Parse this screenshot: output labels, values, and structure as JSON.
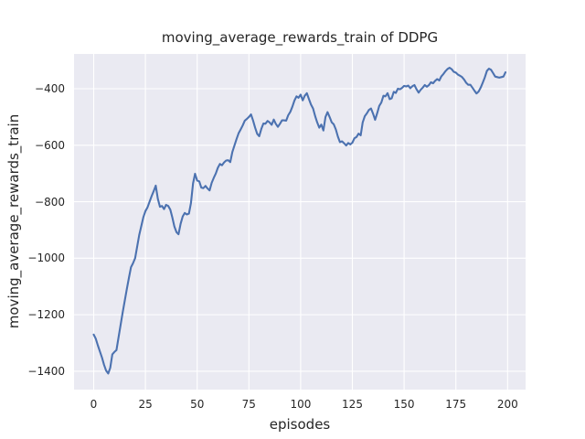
{
  "chart_data": {
    "type": "line",
    "title": "moving_average_rewards_train of DDPG",
    "xlabel": "episodes",
    "ylabel": "moving_average_rewards_train",
    "grid": true,
    "legend": false,
    "style": "seaborn-darkgrid",
    "xlim": [
      -9.5,
      208.7
    ],
    "ylim": [
      -1465,
      -277
    ],
    "xticks": [
      0,
      25,
      50,
      75,
      100,
      125,
      150,
      175,
      200
    ],
    "xtick_labels": [
      "0",
      "25",
      "50",
      "75",
      "100",
      "125",
      "150",
      "175",
      "200"
    ],
    "yticks": [
      -400,
      -600,
      -800,
      -1000,
      -1200,
      -1400
    ],
    "ytick_labels": [
      "−400",
      "−600",
      "−800",
      "−1000",
      "−1200",
      "−1400"
    ],
    "colors": {
      "line": "#4c72b0",
      "axes_background": "#eaeaf2",
      "gridline": "#ffffff",
      "text": "#262626",
      "figure_background": "#ffffff"
    },
    "series": [
      {
        "name": "moving_average_rewards_train",
        "x_start": 0,
        "x_step": 1,
        "values": [
          -1270,
          -1285,
          -1308,
          -1330,
          -1352,
          -1377,
          -1398,
          -1408,
          -1388,
          -1340,
          -1332,
          -1325,
          -1280,
          -1237,
          -1192,
          -1150,
          -1110,
          -1070,
          -1032,
          -1018,
          -1000,
          -958,
          -918,
          -886,
          -855,
          -833,
          -820,
          -800,
          -780,
          -762,
          -743,
          -790,
          -818,
          -815,
          -826,
          -811,
          -815,
          -828,
          -855,
          -888,
          -908,
          -915,
          -878,
          -852,
          -840,
          -845,
          -842,
          -805,
          -735,
          -701,
          -725,
          -728,
          -750,
          -752,
          -744,
          -753,
          -760,
          -733,
          -716,
          -700,
          -680,
          -666,
          -671,
          -661,
          -654,
          -653,
          -660,
          -624,
          -601,
          -579,
          -558,
          -544,
          -530,
          -513,
          -507,
          -500,
          -491,
          -512,
          -538,
          -560,
          -568,
          -542,
          -523,
          -524,
          -514,
          -519,
          -528,
          -509,
          -524,
          -535,
          -524,
          -512,
          -512,
          -513,
          -494,
          -482,
          -464,
          -442,
          -427,
          -432,
          -421,
          -441,
          -425,
          -416,
          -437,
          -456,
          -470,
          -497,
          -519,
          -538,
          -527,
          -548,
          -500,
          -483,
          -500,
          -519,
          -526,
          -544,
          -570,
          -589,
          -586,
          -593,
          -601,
          -592,
          -597,
          -591,
          -575,
          -571,
          -559,
          -565,
          -519,
          -497,
          -487,
          -475,
          -470,
          -488,
          -510,
          -486,
          -461,
          -449,
          -425,
          -427,
          -416,
          -437,
          -434,
          -411,
          -415,
          -400,
          -402,
          -397,
          -390,
          -392,
          -389,
          -398,
          -391,
          -387,
          -402,
          -414,
          -404,
          -396,
          -387,
          -393,
          -387,
          -377,
          -381,
          -372,
          -366,
          -371,
          -356,
          -348,
          -338,
          -330,
          -326,
          -331,
          -340,
          -343,
          -350,
          -354,
          -359,
          -368,
          -379,
          -386,
          -386,
          -396,
          -407,
          -417,
          -410,
          -396,
          -379,
          -360,
          -337,
          -329,
          -333,
          -345,
          -357,
          -359,
          -361,
          -359,
          -357,
          -342
        ]
      }
    ]
  }
}
